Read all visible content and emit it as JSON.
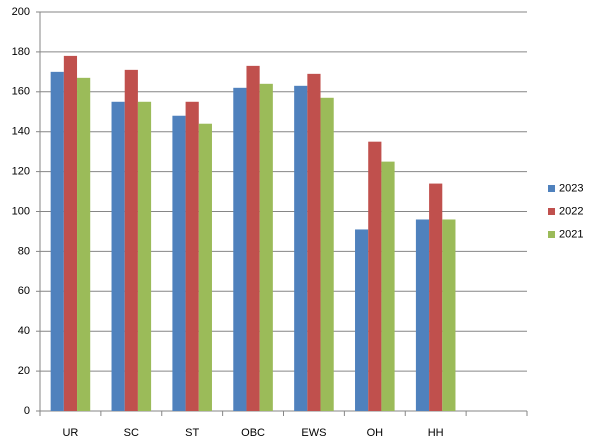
{
  "chart_data": {
    "type": "bar",
    "categories": [
      "UR",
      "SC",
      "ST",
      "OBC",
      "EWS",
      "OH",
      "HH",
      null
    ],
    "series": [
      {
        "name": "2023",
        "color": "#4f81bd",
        "values": [
          170,
          155,
          148,
          162,
          163,
          91,
          96,
          null
        ]
      },
      {
        "name": "2022",
        "color": "#c0504d",
        "values": [
          178,
          171,
          155,
          173,
          169,
          135,
          114,
          null
        ]
      },
      {
        "name": "2021",
        "color": "#9bbb59",
        "values": [
          167,
          155,
          144,
          164,
          157,
          125,
          96,
          null
        ]
      }
    ],
    "ylim": [
      0,
      200
    ],
    "yticks": [
      0,
      20,
      40,
      60,
      80,
      100,
      120,
      140,
      160,
      180,
      200
    ],
    "grid": true,
    "legend": "right"
  }
}
